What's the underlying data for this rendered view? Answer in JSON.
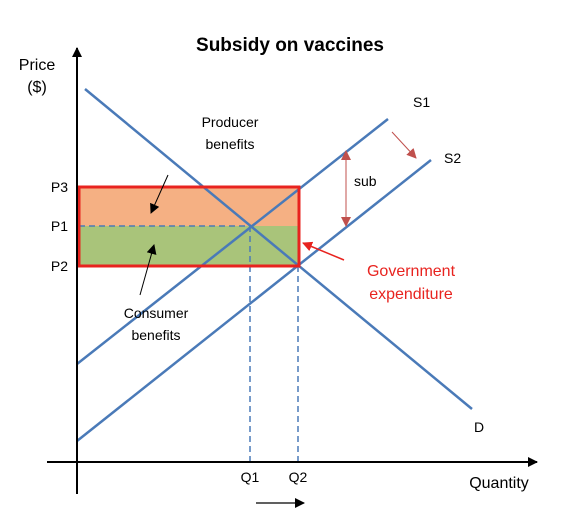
{
  "title": "Subsidy on vaccines",
  "axes": {
    "y_label_line1": "Price",
    "y_label_line2": "($)",
    "x_label": "Quantity"
  },
  "price_levels": [
    "P3",
    "P1",
    "P2"
  ],
  "quantity_levels": [
    "Q1",
    "Q2"
  ],
  "curves": {
    "s1": "S1",
    "s2": "S2",
    "d": "D"
  },
  "annotations": {
    "sub": "sub",
    "producer_line1": "Producer",
    "producer_line2": "benefits",
    "consumer_line1": "Consumer",
    "consumer_line2": "benefits",
    "gov_line1": "Government",
    "gov_line2": "expenditure"
  },
  "colors": {
    "curve": "#4a7ab8",
    "producer_area": "#f5b083",
    "consumer_area": "#a9c47a",
    "gov_box": "#e8231f",
    "gov_text": "#e8231f",
    "arrow_shift": "#c0504d",
    "axis": "#000000"
  }
}
